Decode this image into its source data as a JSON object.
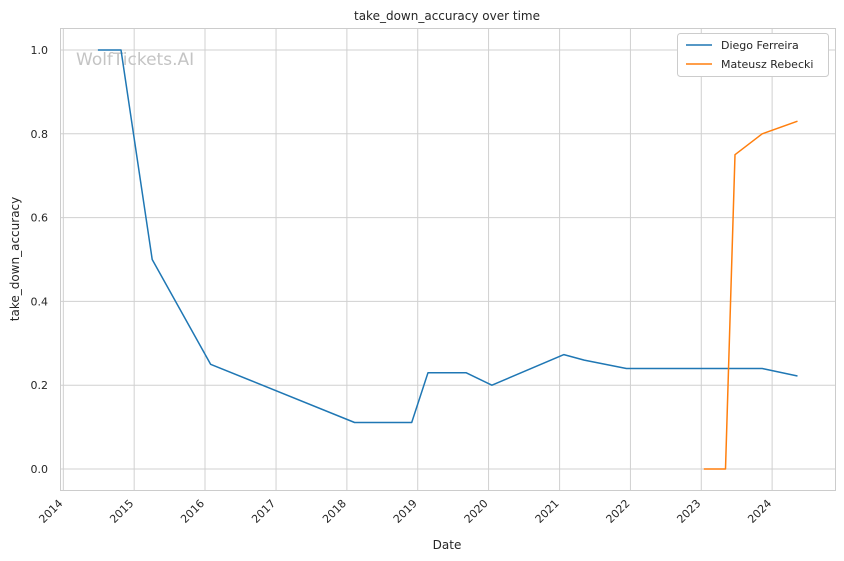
{
  "watermark": "WolfTickets.AI",
  "chart_data": {
    "type": "line",
    "title": "take_down_accuracy over time",
    "xlabel": "Date",
    "ylabel": "take_down_accuracy",
    "x_ticks": [
      "2014",
      "2015",
      "2016",
      "2017",
      "2018",
      "2019",
      "2020",
      "2021",
      "2022",
      "2023",
      "2024"
    ],
    "y_ticks": [
      "0.0",
      "0.2",
      "0.4",
      "0.6",
      "0.8",
      "1.0"
    ],
    "xlim": [
      "2013-12-20",
      "2024-11-20"
    ],
    "ylim": [
      -0.05,
      1.05
    ],
    "grid": true,
    "legend_position": "top-right",
    "series": [
      {
        "name": "Diego Ferreira",
        "color": "#1f77b4",
        "points": [
          [
            "2014-06-28",
            1.0
          ],
          [
            "2014-10-25",
            1.0
          ],
          [
            "2015-04-04",
            0.5
          ],
          [
            "2016-01-30",
            0.25
          ],
          [
            "2018-02-10",
            0.111
          ],
          [
            "2018-12-01",
            0.111
          ],
          [
            "2019-02-23",
            0.23
          ],
          [
            "2019-09-07",
            0.23
          ],
          [
            "2020-01-18",
            0.2
          ],
          [
            "2021-01-23",
            0.273
          ],
          [
            "2021-05-08",
            0.26
          ],
          [
            "2021-12-11",
            0.24
          ],
          [
            "2022-12-03",
            0.24
          ],
          [
            "2023-06-03",
            0.24
          ],
          [
            "2023-11-11",
            0.24
          ],
          [
            "2024-05-11",
            0.222
          ]
        ]
      },
      {
        "name": "Mateusz Rebecki",
        "color": "#ff7f0e",
        "points": [
          [
            "2023-01-14",
            0.0
          ],
          [
            "2023-05-06",
            0.0
          ],
          [
            "2023-06-24",
            0.75
          ],
          [
            "2023-11-11",
            0.8
          ],
          [
            "2024-05-11",
            0.83
          ]
        ]
      }
    ]
  }
}
